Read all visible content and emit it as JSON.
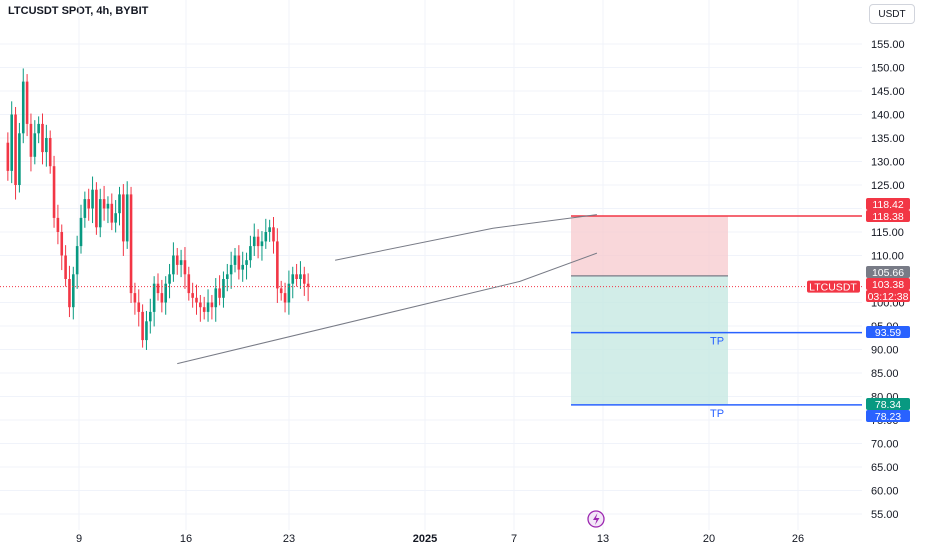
{
  "header": {
    "title": "LTCUSDT SPOT, 4h, BYBIT",
    "currency": "USDT"
  },
  "chart_data": {
    "type": "candlestick",
    "title": "LTCUSDT SPOT, 4h, BYBIT",
    "ylim": [
      52,
      160
    ],
    "y_ticks": [
      "155.00",
      "150.00",
      "145.00",
      "140.00",
      "135.00",
      "130.00",
      "125.00",
      "120.00",
      "115.00",
      "110.00",
      "100.00",
      "95.00",
      "90.00",
      "85.00",
      "80.00",
      "75.00",
      "70.00",
      "65.00",
      "60.00",
      "55.00"
    ],
    "x_ticks": [
      "9",
      "16",
      "23",
      "2025",
      "7",
      "13",
      "20",
      "26"
    ],
    "close_series": [
      134,
      128,
      140,
      125,
      136,
      147,
      138,
      131,
      136,
      138,
      132,
      135,
      129,
      118,
      115,
      110,
      105,
      99,
      106,
      112,
      118,
      122,
      120,
      124,
      116,
      122,
      120,
      121,
      117,
      119,
      123,
      113,
      123,
      102,
      100,
      98,
      92,
      96,
      98,
      104,
      102,
      100,
      104,
      106,
      110,
      108,
      109,
      106,
      102,
      101,
      100,
      99,
      98,
      100,
      99,
      103,
      101,
      105,
      106,
      108,
      110,
      107,
      108,
      109,
      112,
      114,
      112,
      113,
      115,
      116,
      113,
      103,
      102,
      100,
      104,
      106,
      105,
      106,
      104,
      103.38
    ],
    "drawings": {
      "wedge_upper": [
        [
          86,
          109
        ],
        [
          127,
          115.8
        ],
        [
          154,
          118.7
        ]
      ],
      "wedge_lower": [
        [
          45,
          87
        ],
        [
          134,
          104.5
        ],
        [
          154,
          110.5
        ]
      ]
    },
    "position": {
      "stop": 118.4,
      "entry": 105.66,
      "target": 78.34
    },
    "take_profits": [
      {
        "label": "TP",
        "price": 93.59
      },
      {
        "label": "TP",
        "price": 78.23
      }
    ],
    "price_labels": [
      {
        "text": "118.42",
        "price": 118.42,
        "color": "#f23645"
      },
      {
        "text": "118.38",
        "price": 118.38,
        "color": "#f23645"
      },
      {
        "text": "105.66",
        "price": 105.66,
        "color": "#787b86"
      },
      {
        "text": "103.38",
        "price": 103.38,
        "color": "#f23645"
      },
      {
        "text": "03:12:38",
        "price": 103.38,
        "color": "#f23645"
      },
      {
        "text": "93.59",
        "price": 93.59,
        "color": "#2962ff"
      },
      {
        "text": "78.34",
        "price": 78.34,
        "color": "#089981"
      },
      {
        "text": "78.23",
        "price": 78.23,
        "color": "#2962ff"
      }
    ],
    "symbol_label": "LTCUSDT",
    "current_price": 103.38,
    "colors": {
      "up": "#089981",
      "down": "#f23645",
      "risk": "#f7c9ce",
      "reward": "#c7e8e2",
      "tp": "#2962ff"
    }
  }
}
